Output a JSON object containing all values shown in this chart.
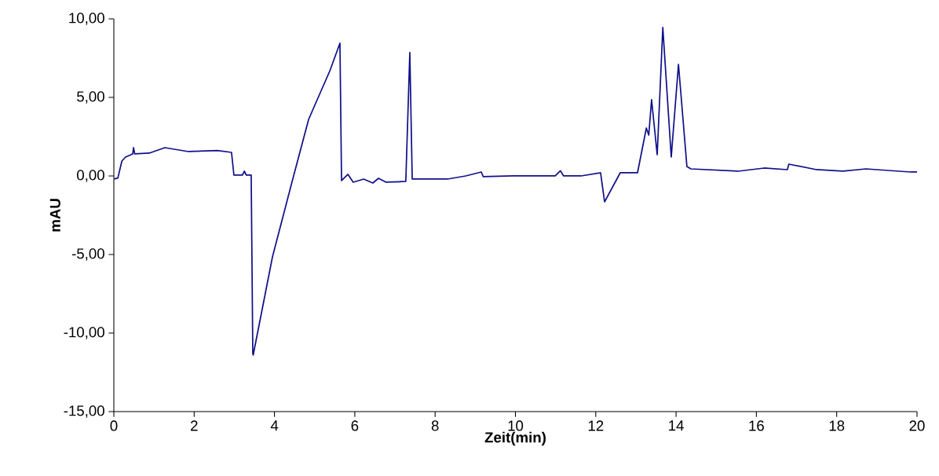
{
  "chart_data": {
    "type": "line",
    "xlabel": "Zeit(min)",
    "ylabel": "mAU",
    "x": [
      0,
      0.1,
      0.2,
      0.29,
      0.47,
      0.49,
      0.52,
      0.88,
      1.27,
      1.86,
      2.58,
      2.93,
      2.99,
      3.2,
      3.25,
      3.3,
      3.42,
      3.46,
      3.47,
      3.95,
      4.46,
      4.85,
      5.38,
      5.63,
      5.67,
      5.83,
      5.96,
      6.22,
      6.45,
      6.59,
      6.78,
      7.27,
      7.37,
      7.43,
      7.72,
      8.31,
      8.76,
      9.15,
      9.2,
      9.93,
      10.99,
      11.12,
      11.2,
      11.63,
      12.12,
      12.22,
      12.61,
      13.04,
      13.26,
      13.32,
      13.39,
      13.53,
      13.67,
      13.88,
      14.06,
      14.27,
      14.37,
      15.54,
      16.19,
      16.77,
      16.81,
      17.5,
      18.15,
      18.73,
      19.84,
      20
    ],
    "series": [
      {
        "color": "#10108a",
        "values": [
          -0.2,
          -0.13,
          0.95,
          1.2,
          1.4,
          1.8,
          1.4,
          1.45,
          1.8,
          1.55,
          1.62,
          1.5,
          0.05,
          0.05,
          0.3,
          0.05,
          0.05,
          -11.3,
          -11.4,
          -5.15,
          -0.15,
          3.6,
          6.7,
          8.45,
          -0.3,
          0.1,
          -0.4,
          -0.2,
          -0.45,
          -0.15,
          -0.4,
          -0.35,
          7.85,
          -0.2,
          -0.2,
          -0.2,
          0.0,
          0.25,
          -0.05,
          0.0,
          0.0,
          0.33,
          0.0,
          0.0,
          0.2,
          -1.65,
          0.2,
          0.2,
          3.05,
          2.6,
          4.85,
          1.35,
          9.45,
          1.2,
          7.1,
          0.6,
          0.45,
          0.3,
          0.5,
          0.4,
          0.75,
          0.4,
          0.3,
          0.45,
          0.25,
          0.25
        ]
      }
    ],
    "xlim": [
      0,
      20
    ],
    "xticks": [
      0,
      2,
      4,
      6,
      8,
      10,
      12,
      14,
      16,
      18,
      20
    ],
    "ylim": [
      -15,
      10
    ],
    "yticks": [
      {
        "value": -15,
        "label": "-15,00"
      },
      {
        "value": -10,
        "label": "-10,00"
      },
      {
        "value": -5,
        "label": "-5,00"
      },
      {
        "value": 0,
        "label": "0,00"
      },
      {
        "value": 5,
        "label": "5,00"
      },
      {
        "value": 10,
        "label": "10,00"
      }
    ],
    "grid": false,
    "marker": "none",
    "line_style": "solid"
  }
}
